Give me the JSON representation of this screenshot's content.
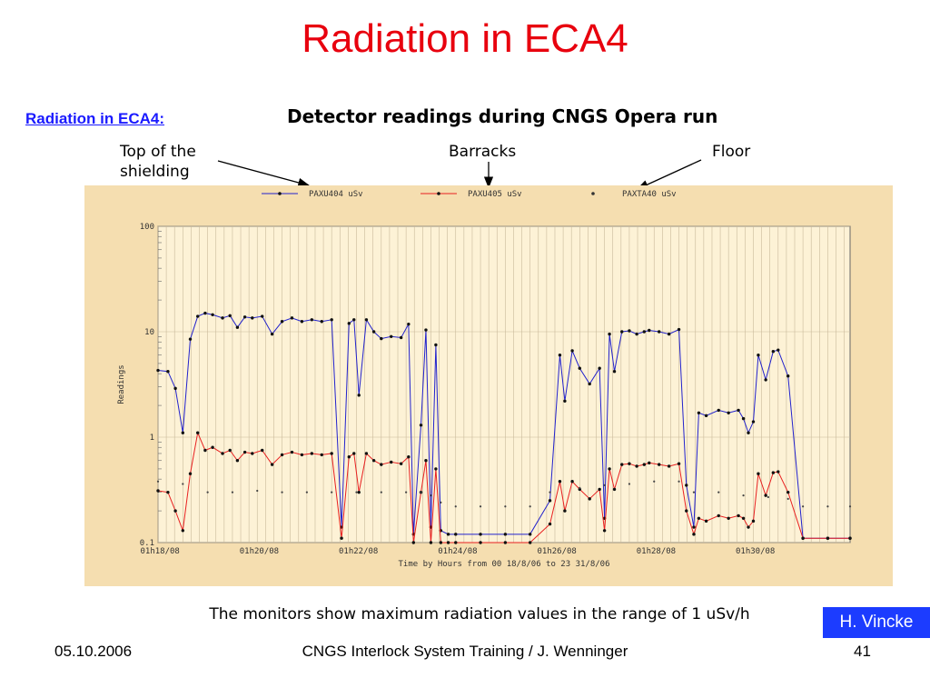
{
  "slide": {
    "title": "Radiation in ECA4",
    "section_link": "Radiation in ECA4:",
    "plot_heading": "Detector readings during CNGS Opera run",
    "callouts": {
      "top_shielding": "Top of the\nshielding",
      "barracks": "Barracks",
      "floor": "Floor"
    },
    "caption": "The monitors show maximum radiation values in the range of 1 uSv/h",
    "author_badge": "H. Vincke",
    "footer": {
      "date": "05.10.2006",
      "center": "CNGS Interlock System Training / J. Wenninger",
      "page": "41"
    },
    "colors": {
      "title": "#e8000e",
      "link": "#1a1aff",
      "badge": "#1c3cff",
      "panel": "#f5deb0"
    }
  },
  "chart_data": {
    "type": "line",
    "title": "",
    "xlabel": "Time by Hours  from 00 18/8/06 to 23 31/8/06",
    "ylabel": "Readings",
    "yscale": "log",
    "ylim": [
      0.1,
      100
    ],
    "xlim": [
      18.0,
      31.95
    ],
    "x_unit": "day of August 2006",
    "y_ticks": [
      "0.1",
      "1",
      "10",
      "100"
    ],
    "y_tick_values": [
      0.1,
      1,
      10,
      100
    ],
    "x_ticks": [
      "01h18/08",
      "01h20/08",
      "01h22/08",
      "01h24/08",
      "01h26/08",
      "01h28/08",
      "01h30/08"
    ],
    "x_tick_values": [
      18.04,
      20.04,
      22.04,
      24.04,
      26.04,
      28.04,
      30.04
    ],
    "grid": true,
    "legend_position": "top",
    "series": [
      {
        "name": "PAXU404  uSv",
        "color": "#2222cc",
        "marker": "dot",
        "x": [
          18.0,
          18.2,
          18.35,
          18.5,
          18.65,
          18.8,
          18.95,
          19.1,
          19.3,
          19.45,
          19.6,
          19.75,
          19.9,
          20.1,
          20.3,
          20.5,
          20.7,
          20.9,
          21.1,
          21.3,
          21.5,
          21.7,
          21.85,
          21.95,
          22.05,
          22.2,
          22.35,
          22.5,
          22.7,
          22.9,
          23.05,
          23.15,
          23.3,
          23.4,
          23.5,
          23.6,
          23.7,
          23.85,
          24.0,
          24.5,
          25.0,
          25.5,
          25.9,
          26.1,
          26.2,
          26.35,
          26.5,
          26.7,
          26.9,
          27.0,
          27.1,
          27.2,
          27.35,
          27.5,
          27.65,
          27.8,
          27.9,
          28.1,
          28.3,
          28.5,
          28.65,
          28.8,
          28.9,
          29.05,
          29.3,
          29.5,
          29.7,
          29.8,
          29.9,
          30.0,
          30.1,
          30.25,
          30.4,
          30.5,
          30.7,
          31.0,
          31.5,
          31.95
        ],
        "values": [
          4.3,
          4.2,
          2.9,
          1.1,
          8.5,
          14,
          15,
          14.5,
          13.5,
          14.2,
          11,
          13.8,
          13.5,
          14,
          9.5,
          12.5,
          13.5,
          12.5,
          13,
          12.5,
          13,
          0.14,
          12,
          13,
          2.5,
          13,
          10,
          8.6,
          9,
          8.8,
          11.8,
          0.12,
          1.3,
          10.4,
          0.14,
          7.5,
          0.13,
          0.12,
          0.12,
          0.12,
          0.12,
          0.12,
          0.25,
          6,
          2.2,
          6.6,
          4.5,
          3.2,
          4.5,
          0.17,
          9.5,
          4.2,
          10,
          10.2,
          9.5,
          10,
          10.3,
          10,
          9.5,
          10.5,
          0.35,
          0.14,
          1.7,
          1.6,
          1.8,
          1.7,
          1.8,
          1.5,
          1.1,
          1.4,
          6,
          3.5,
          6.5,
          6.7,
          3.8,
          0.11,
          0.11,
          0.11
        ]
      },
      {
        "name": "PAXU405  uSv",
        "color": "#e82020",
        "marker": "dot",
        "x": [
          18.0,
          18.2,
          18.35,
          18.5,
          18.65,
          18.8,
          18.95,
          19.1,
          19.3,
          19.45,
          19.6,
          19.75,
          19.9,
          20.1,
          20.3,
          20.5,
          20.7,
          20.9,
          21.1,
          21.3,
          21.5,
          21.7,
          21.85,
          21.95,
          22.05,
          22.2,
          22.35,
          22.5,
          22.7,
          22.9,
          23.05,
          23.15,
          23.3,
          23.4,
          23.5,
          23.6,
          23.7,
          23.85,
          24.0,
          24.5,
          25.0,
          25.5,
          25.9,
          26.1,
          26.2,
          26.35,
          26.5,
          26.7,
          26.9,
          27.0,
          27.1,
          27.2,
          27.35,
          27.5,
          27.65,
          27.8,
          27.9,
          28.1,
          28.3,
          28.5,
          28.65,
          28.8,
          28.9,
          29.05,
          29.3,
          29.5,
          29.7,
          29.8,
          29.9,
          30.0,
          30.1,
          30.25,
          30.4,
          30.5,
          30.7,
          31.0,
          31.5,
          31.95
        ],
        "values": [
          0.31,
          0.3,
          0.2,
          0.13,
          0.45,
          1.1,
          0.75,
          0.8,
          0.7,
          0.75,
          0.6,
          0.72,
          0.7,
          0.75,
          0.55,
          0.68,
          0.72,
          0.68,
          0.7,
          0.68,
          0.7,
          0.11,
          0.65,
          0.7,
          0.3,
          0.7,
          0.6,
          0.55,
          0.58,
          0.56,
          0.65,
          0.1,
          0.3,
          0.6,
          0.1,
          0.5,
          0.1,
          0.1,
          0.1,
          0.1,
          0.1,
          0.1,
          0.15,
          0.38,
          0.2,
          0.38,
          0.32,
          0.26,
          0.32,
          0.13,
          0.5,
          0.32,
          0.55,
          0.56,
          0.53,
          0.55,
          0.57,
          0.55,
          0.53,
          0.56,
          0.2,
          0.12,
          0.17,
          0.16,
          0.18,
          0.17,
          0.18,
          0.17,
          0.14,
          0.16,
          0.45,
          0.28,
          0.46,
          0.47,
          0.3,
          0.11,
          0.11,
          0.11
        ]
      },
      {
        "name": "PAXTA40  uSv",
        "color": "#111111",
        "marker": "dot",
        "x": [
          18.0,
          18.5,
          19.0,
          19.5,
          20.0,
          20.5,
          21.0,
          21.5,
          22.0,
          22.5,
          23.0,
          23.3,
          23.5,
          23.7,
          24.0,
          24.5,
          25.0,
          25.5,
          25.9,
          26.5,
          27.0,
          27.5,
          28.0,
          28.5,
          28.8,
          29.3,
          29.8,
          30.3,
          30.7,
          31.0,
          31.5,
          31.95
        ],
        "values": [
          0.38,
          0.36,
          0.3,
          0.3,
          0.31,
          0.3,
          0.3,
          0.3,
          0.3,
          0.3,
          0.3,
          0.3,
          0.28,
          0.24,
          0.22,
          0.22,
          0.22,
          0.22,
          0.3,
          0.33,
          0.35,
          0.36,
          0.38,
          0.38,
          0.3,
          0.3,
          0.28,
          0.27,
          0.26,
          0.22,
          0.22,
          0.22
        ]
      }
    ]
  }
}
